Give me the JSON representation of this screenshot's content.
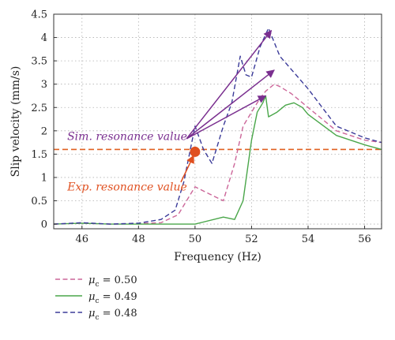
{
  "chart_data": {
    "type": "line",
    "xlabel": "Frequency (Hz)",
    "ylabel": "Slip velocity (mm/s)",
    "xlim": [
      45,
      56.6
    ],
    "ylim": [
      -0.1,
      4.5
    ],
    "xticks": [
      46,
      48,
      50,
      52,
      54,
      56
    ],
    "yticks": [
      0,
      0.5,
      1,
      1.5,
      2,
      2.5,
      3,
      3.5,
      4,
      4.5
    ],
    "grid": true,
    "legend_position": "bottom-left-outside",
    "series": [
      {
        "name": "μc = 0.50",
        "legend_symbol": "μ",
        "legend_sub": "c",
        "legend_value": " = 0.50",
        "color": "#cc6699",
        "dash": "dashed",
        "x": [
          45,
          46,
          47,
          48,
          48.8,
          49.4,
          49.8,
          50,
          50.5,
          51,
          51.4,
          51.7,
          52,
          52.3,
          52.5,
          52.8,
          53,
          53.4,
          54,
          55,
          56,
          56.6
        ],
        "y": [
          0,
          0.02,
          0,
          0.01,
          0.03,
          0.2,
          0.6,
          0.8,
          0.65,
          0.5,
          1.3,
          2.1,
          2.4,
          2.7,
          2.85,
          3.0,
          2.95,
          2.8,
          2.5,
          2.0,
          1.8,
          1.75
        ]
      },
      {
        "name": "μc = 0.49",
        "legend_symbol": "μ",
        "legend_sub": "c",
        "legend_value": " = 0.49",
        "color": "#4aa64a",
        "dash": "solid",
        "x": [
          45,
          46,
          47,
          48,
          49,
          50,
          51,
          51.4,
          51.7,
          52,
          52.2,
          52.4,
          52.5,
          52.6,
          52.9,
          53.2,
          53.5,
          53.8,
          54,
          55,
          56,
          56.6
        ],
        "y": [
          0,
          0.02,
          0,
          0,
          0,
          0,
          0.15,
          0.1,
          0.5,
          1.8,
          2.4,
          2.6,
          2.75,
          2.3,
          2.4,
          2.55,
          2.6,
          2.5,
          2.35,
          1.9,
          1.7,
          1.6
        ]
      },
      {
        "name": "μc = 0.48",
        "legend_symbol": "μ",
        "legend_sub": "c",
        "legend_value": " = 0.48",
        "color": "#3b3b99",
        "dash": "dashed",
        "x": [
          45,
          46,
          47,
          48,
          48.8,
          49.3,
          49.6,
          50,
          50.3,
          50.6,
          51,
          51.3,
          51.6,
          51.8,
          52,
          52.3,
          52.6,
          53,
          54,
          55,
          56,
          56.6
        ],
        "y": [
          0,
          0.03,
          0,
          0.02,
          0.1,
          0.3,
          0.9,
          2.1,
          1.6,
          1.3,
          2.1,
          2.6,
          3.6,
          3.2,
          3.15,
          3.8,
          4.2,
          3.6,
          2.9,
          2.1,
          1.85,
          1.75
        ]
      }
    ],
    "reference_line": {
      "y": 1.6,
      "color": "#e06020",
      "dash": "dashed"
    },
    "experiment_point": {
      "x": 50,
      "y": 1.55,
      "color": "#e05020"
    },
    "annotations": [
      {
        "text": "Sim. resonance value",
        "color": "#7a2f8f",
        "anchor_x": 47.6,
        "anchor_y": 1.8,
        "origin_x": 49.7,
        "origin_y": 1.83,
        "targets": [
          [
            52.7,
            4.15
          ],
          [
            52.8,
            3.3
          ],
          [
            52.5,
            2.75
          ]
        ]
      },
      {
        "text": "Exp. resonance value",
        "color": "#e05020",
        "anchor_x": 47.6,
        "anchor_y": 0.72,
        "origin_x": 49.5,
        "origin_y": 0.9,
        "targets": [
          [
            49.95,
            1.47
          ]
        ]
      }
    ]
  }
}
